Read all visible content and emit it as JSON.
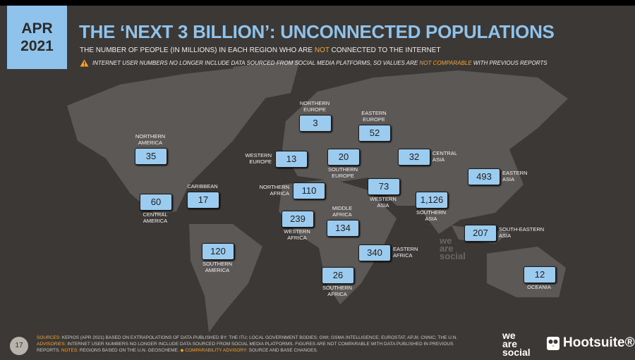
{
  "header": {
    "date": [
      "APR",
      "2021"
    ],
    "title": "THE ‘NEXT 3 BILLION’: UNCONNECTED POPULATIONS",
    "subtitle": [
      "THE NUMBER OF PEOPLE (IN MILLIONS) IN EACH REGION WHO ARE ",
      "NOT",
      " CONNECTED TO THE INTERNET"
    ],
    "warning": [
      "INTERNET USER NUMBERS NO LONGER INCLUDE DATA SOURCED FROM SOCIAL MEDIA PLATFORMS, SO VALUES ARE ",
      "NOT COMPARABLE",
      " WITH PREVIOUS REPORTS"
    ]
  },
  "regions": [
    {
      "label": [
        "NORTHERN",
        "AMERICA"
      ],
      "value": "35"
    },
    {
      "label": [
        "CENTRAL",
        "AMERICA"
      ],
      "value": "60"
    },
    {
      "label": [
        "CARIBBEAN"
      ],
      "value": "17"
    },
    {
      "label": [
        "SOUTHERN",
        "AMERICA"
      ],
      "value": "120"
    },
    {
      "label": [
        "NORTHERN",
        "EUROPE"
      ],
      "value": "3"
    },
    {
      "label": [
        "EASTERN",
        "EUROPE"
      ],
      "value": "52"
    },
    {
      "label": [
        "WESTERN",
        "EUROPE"
      ],
      "value": "13"
    },
    {
      "label": [
        "SOUTHERN",
        "EUROPE"
      ],
      "value": "20"
    },
    {
      "label": [
        "CENTRAL",
        "ASIA"
      ],
      "value": "32"
    },
    {
      "label": [
        "EASTERN",
        "ASIA"
      ],
      "value": "493"
    },
    {
      "label": [
        "NORTHERN",
        "AFRICA"
      ],
      "value": "110"
    },
    {
      "label": [
        "WESTERN",
        "ASIA"
      ],
      "value": "73"
    },
    {
      "label": [
        "SOUTHERN",
        "ASIA"
      ],
      "value": "1,126"
    },
    {
      "label": [
        "WESTERN",
        "AFRICA"
      ],
      "value": "239"
    },
    {
      "label": [
        "MIDDLE",
        "AFRICA"
      ],
      "value": "134"
    },
    {
      "label": [
        "SOUTH-EASTERN",
        "ASIA"
      ],
      "value": "207"
    },
    {
      "label": [
        "EASTERN",
        "AFRICA"
      ],
      "value": "340"
    },
    {
      "label": [
        "SOUTHERN",
        "AFRICA"
      ],
      "value": "26"
    },
    {
      "label": [
        "OCEANIA"
      ],
      "value": "12"
    }
  ],
  "watermark": [
    "we",
    "are",
    "social"
  ],
  "footer": {
    "page": "17",
    "sources_label": "SOURCES:",
    "sources": " KEPIOS (APR 2021) BASED ON EXTRAPOLATIONS OF DATA PUBLISHED BY: THE ITU; LOCAL GOVERNMENT BODIES; GWI; GSMA INTELLIGENCE; EUROSTAT; APJII; CNNIC; THE U.N. ",
    "advisories_label": "ADVISORIES:",
    "advisories": " INTERNET USER NUMBERS NO LONGER INCLUDE DATA SOURCED FROM SOCIAL MEDIA PLATFORMS. FIGURES ARE NOT COMPARABLE WITH DATA PUBLISHED IN PREVIOUS REPORTS. ",
    "notes_label": "NOTES:",
    "notes": " REGIONS BASED ON THE U.N. GEOSCHEME. ",
    "comparability_label": "◆ COMPARABILITY ADVISORY:",
    "comparability": " SOURCE AND BASE CHANGES.",
    "logo_1": [
      "we",
      "are",
      "social"
    ],
    "logo_2": "Hootsuite®"
  }
}
